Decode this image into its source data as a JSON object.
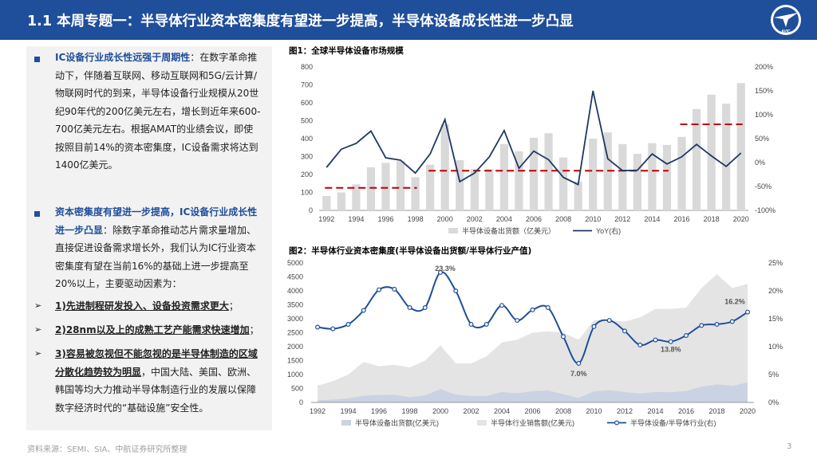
{
  "header": {
    "title": "1.1 本周专题一：半导体行业资本密集度有望进一步提高，半导体设备成长性进一步凸显",
    "logo_icon": "avic-logo-icon",
    "logo_text": "AVIC"
  },
  "left": {
    "p1_hl": "IC设备行业成长性远强于周期性",
    "p1_text": "：在数字革命推动下，伴随着互联网、移动互联网和5G/云计算/物联网时代的到来，半导体设备行业规模从20世纪90年代的200亿美元左右，增长到近年来600-700亿美元左右。根据AMAT的业绩会议，即使按照目前14%的资本密集度，IC设备需求将达到1400亿美元。",
    "p2_hl": "资本密集度有望进一步提高，IC设备行业成长性进一步凸显",
    "p2_text": "：除数字革命推动芯片需求量增加、直接促进设备需求增长外，我们认为IC行业资本密集度有望在当前16%的基础上进一步提高至20%以上，主要驱动因素为：",
    "b1": "1)先进制程研发投入、设备投资需求更大",
    "b1_tail": "；",
    "b2": "2)28nm以及上的成熟工艺产能需求快速增加",
    "b2_tail": "；",
    "b3": "3)容易被忽视但不能忽视的是半导体制造的区域分散化趋势较为明显",
    "b3_tail": "，中国大陆、美国、欧洲、韩国等均大力推动半导体制造行业的发展以保障数字经济时代的“基础设施”安全性。"
  },
  "footer": {
    "source": "资料来源：SEMI、SIA、中航证券研究所整理",
    "page": "3"
  },
  "chart_data": [
    {
      "type": "bar+line",
      "title": "图1：全球半导体设备市场规模",
      "x": [
        1992,
        1993,
        1994,
        1995,
        1996,
        1997,
        1998,
        1999,
        2000,
        2001,
        2002,
        2003,
        2004,
        2005,
        2006,
        2007,
        2008,
        2009,
        2010,
        2011,
        2012,
        2013,
        2014,
        2015,
        2016,
        2017,
        2018,
        2019,
        2020
      ],
      "xticks": [
        "1992",
        "1994",
        "1996",
        "1998",
        "2000",
        "2002",
        "2004",
        "2006",
        "2008",
        "2010",
        "2012",
        "2014",
        "2016",
        "2018",
        "2020"
      ],
      "series": [
        {
          "name": "半导体设备出货额（亿美元）",
          "axis": "left",
          "values": [
            80,
            100,
            145,
            240,
            265,
            275,
            185,
            255,
            480,
            280,
            230,
            230,
            370,
            330,
            405,
            430,
            295,
            160,
            400,
            435,
            370,
            315,
            375,
            365,
            410,
            565,
            645,
            595,
            710
          ]
        },
        {
          "name": "YoY(右)",
          "axis": "right",
          "values": [
            -10,
            28,
            40,
            66,
            10,
            5,
            -22,
            18,
            90,
            -40,
            -22,
            12,
            67,
            -12,
            24,
            6,
            -31,
            -46,
            150,
            8,
            -17,
            -16,
            18,
            -3,
            12,
            38,
            14,
            -8,
            20
          ]
        }
      ],
      "dashed_lines": [
        {
          "from": 1992,
          "to": 1998,
          "value": -53
        },
        {
          "from": 1999,
          "to": 2015,
          "value": -17
        },
        {
          "from": 2016,
          "to": 2020,
          "value": 80
        }
      ],
      "ylim_left": [
        0,
        800
      ],
      "yticks_left": [
        "0",
        "100",
        "200",
        "300",
        "400",
        "500",
        "600",
        "700",
        "800"
      ],
      "ylim_right": [
        -100,
        200
      ],
      "yticks_right": [
        "-100%",
        "-50%",
        "0%",
        "50%",
        "100%",
        "150%",
        "200%"
      ],
      "legend": [
        "半导体设备出货额（亿美元）",
        "YoY(右)"
      ],
      "colors": {
        "bar": "#d9d9d9",
        "line": "#1f3864",
        "dashed": "#c00000"
      }
    },
    {
      "type": "area+line",
      "title": "图2：半导体行业资本密集度(半导体设备出货额/半导体行业产值)",
      "x": [
        1992,
        1993,
        1994,
        1995,
        1996,
        1997,
        1998,
        1999,
        2000,
        2001,
        2002,
        2003,
        2004,
        2005,
        2006,
        2007,
        2008,
        2009,
        2010,
        2011,
        2012,
        2013,
        2014,
        2015,
        2016,
        2017,
        2018,
        2019,
        2020
      ],
      "xticks": [
        "1992",
        "1994",
        "1996",
        "1998",
        "2000",
        "2002",
        "2004",
        "2006",
        "2008",
        "2010",
        "2012",
        "2014",
        "2016",
        "2018",
        "2020"
      ],
      "series": [
        {
          "name": "半导体设备出货额(亿美元)",
          "axis": "left",
          "values": [
            80,
            100,
            145,
            240,
            265,
            275,
            185,
            255,
            480,
            280,
            230,
            230,
            370,
            330,
            405,
            430,
            295,
            160,
            400,
            435,
            370,
            315,
            375,
            365,
            410,
            565,
            645,
            595,
            710
          ]
        },
        {
          "name": "半导体行业销售额(亿美元)",
          "axis": "left",
          "values": [
            600,
            760,
            1000,
            1450,
            1300,
            1350,
            1250,
            1500,
            2050,
            1400,
            1400,
            1650,
            2150,
            2250,
            2500,
            2550,
            2500,
            2250,
            2950,
            2950,
            2900,
            3050,
            3350,
            3350,
            3400,
            4100,
            4600,
            4100,
            4250
          ]
        },
        {
          "name": "半导体设备/半导体行业(右)",
          "axis": "right",
          "values": [
            13.5,
            13.2,
            14.0,
            16.5,
            20.2,
            20.3,
            17.0,
            17.0,
            23.3,
            20.0,
            14.0,
            14.0,
            17.4,
            14.7,
            16.6,
            17.0,
            11.8,
            7.0,
            13.6,
            14.7,
            12.8,
            10.3,
            11.2,
            10.9,
            12.0,
            13.8,
            14.0,
            14.5,
            16.2
          ]
        }
      ],
      "annotations": [
        "23.3%",
        "7.0%",
        "13.8%",
        "16.2%"
      ],
      "ylim_left": [
        0,
        5000
      ],
      "yticks_left": [
        "0",
        "500",
        "1000",
        "1500",
        "2000",
        "2500",
        "3000",
        "3500",
        "4000",
        "4500",
        "5000"
      ],
      "ylim_right": [
        0,
        25
      ],
      "yticks_right": [
        "0%",
        "5%",
        "10%",
        "15%",
        "20%",
        "25%"
      ],
      "legend": [
        "半导体设备出货额(亿美元)",
        "半导体行业销售额(亿美元)",
        "半导体设备/半导体行业(右)"
      ],
      "colors": {
        "area_dark": "#c9d3e3",
        "area_light": "#e4e4e4",
        "line": "#1f4e9a"
      }
    }
  ]
}
